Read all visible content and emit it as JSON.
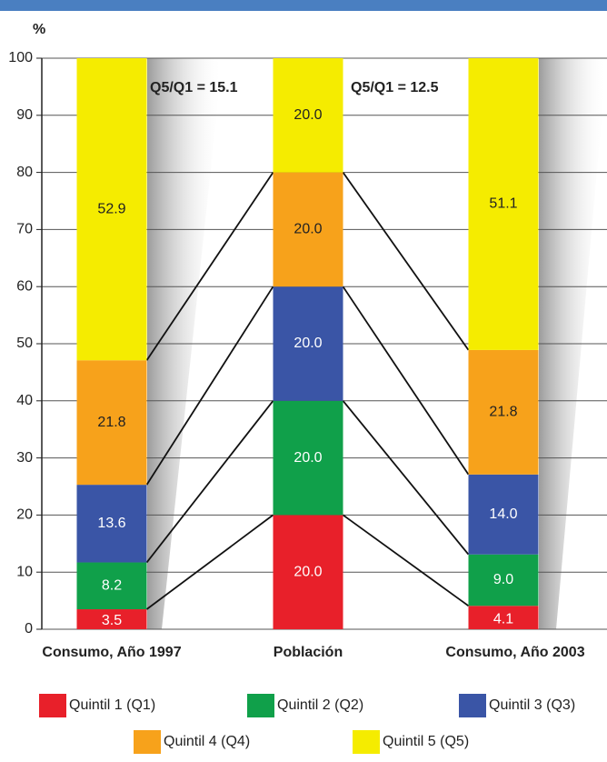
{
  "chart_data": {
    "type": "bar",
    "stacked": true,
    "ylabel": "%",
    "categories": [
      "Consumo, Año 1997",
      "Población",
      "Consumo, Año 2003"
    ],
    "series": [
      {
        "name": "Quintil 1 (Q1)",
        "color": "#e8202a",
        "values": [
          3.5,
          20,
          4.1
        ],
        "value_labels": [
          "3.5",
          "20.0",
          "4.1"
        ]
      },
      {
        "name": "Quintil 2 (Q2)",
        "color": "#10a04a",
        "values": [
          8.2,
          20,
          9
        ],
        "value_labels": [
          "8.2",
          "20.0",
          "9.0"
        ]
      },
      {
        "name": "Quintil 3 (Q3)",
        "color": "#3a55a6",
        "values": [
          13.6,
          20,
          14
        ],
        "value_labels": [
          "13.6",
          "20.0",
          "14.0"
        ]
      },
      {
        "name": "Quintil 4 (Q4)",
        "color": "#f7a21b",
        "values": [
          21.8,
          20,
          21.8
        ],
        "value_labels": [
          "21.8",
          "20.0",
          "21.8"
        ]
      },
      {
        "name": "Quintil 5 (Q5)",
        "color": "#f5ec00",
        "values": [
          52.9,
          20,
          51.1
        ],
        "value_labels": [
          "52.9",
          "20.0",
          "51.1"
        ]
      }
    ],
    "annotations": [
      "Q5/Q1 = 15.1",
      "Q5/Q1 = 12.5"
    ],
    "ylim": [
      0,
      100
    ],
    "yticks": [
      0,
      10,
      20,
      30,
      40,
      50,
      60,
      70,
      80,
      90,
      100
    ],
    "grid": true,
    "legend": "bottom"
  }
}
